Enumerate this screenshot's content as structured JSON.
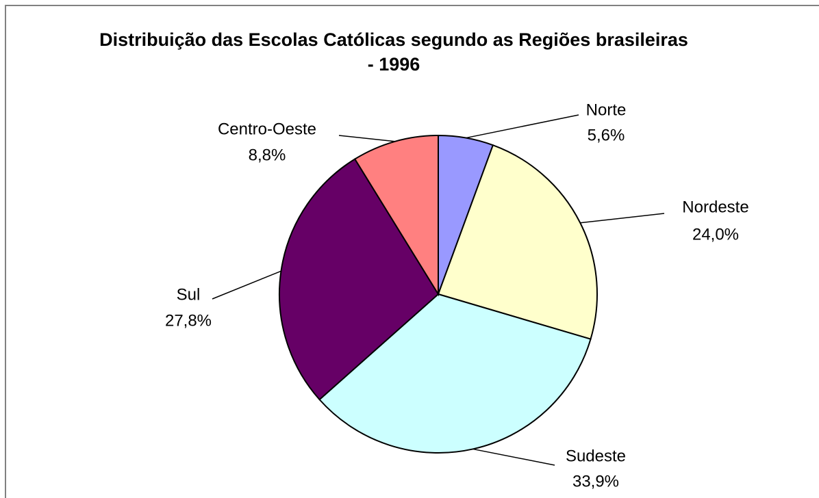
{
  "chart_data": {
    "type": "pie",
    "title": "Distribuição das Escolas Católicas segundo as Regiões brasileiras - 1996",
    "categories": [
      "Norte",
      "Nordeste",
      "Sudeste",
      "Sul",
      "Centro-Oeste"
    ],
    "values": [
      5.6,
      24.0,
      33.9,
      27.8,
      8.8
    ],
    "value_labels": [
      "5,6%",
      "24,0%",
      "33,9%",
      "27,8%",
      "8,8%"
    ],
    "colors": [
      "#9999ff",
      "#ffffcc",
      "#ccffff",
      "#660066",
      "#ff8080"
    ]
  }
}
